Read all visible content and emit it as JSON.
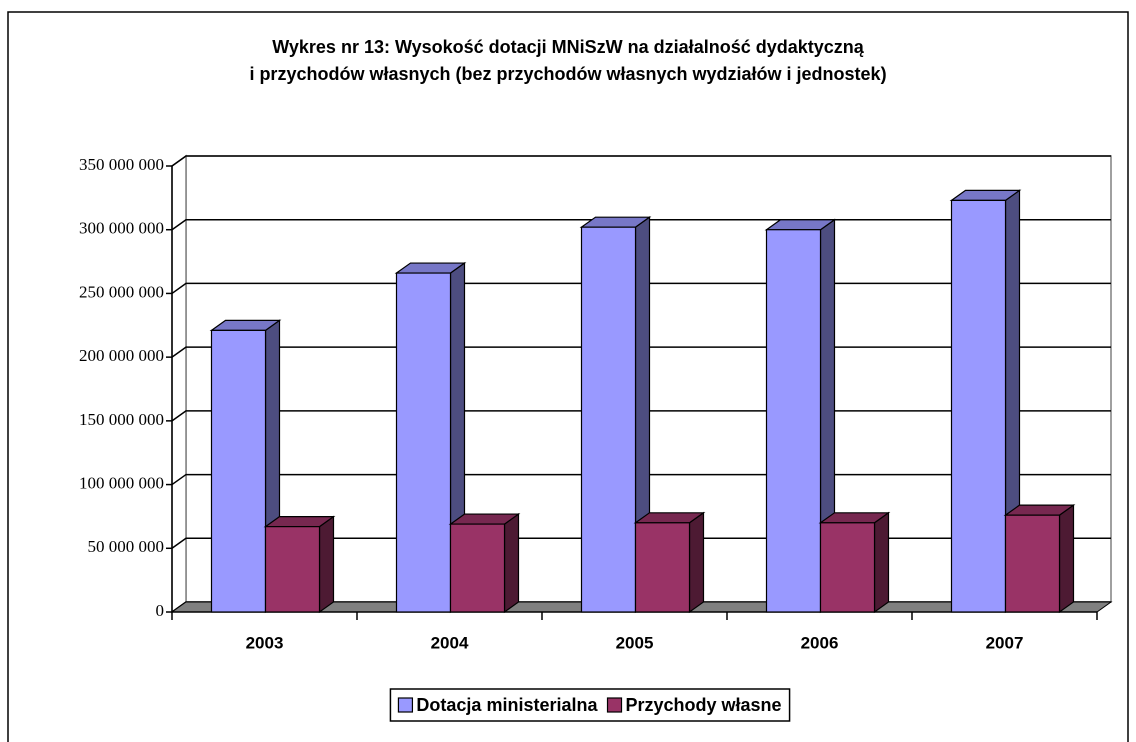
{
  "chart_data": {
    "type": "bar3d",
    "title": "Wykres nr 13: Wysokość dotacji MNiSzW na działalność dydaktyczną",
    "subtitle": "i przychodów własnych (bez przychodów własnych wydziałów i jednostek)",
    "categories": [
      "2003",
      "2004",
      "2005",
      "2006",
      "2007"
    ],
    "series": [
      {
        "name": "Dotacja ministerialna",
        "color": "#9999ff",
        "values": [
          221000000,
          266000000,
          302000000,
          300000000,
          323000000
        ]
      },
      {
        "name": "Przychody własne",
        "color": "#993366",
        "values": [
          67000000,
          69000000,
          70000000,
          70000000,
          76000000
        ]
      }
    ],
    "ylim": [
      0,
      350000000
    ],
    "yticks": [
      0,
      {
        "value": 50000000,
        "label": "50 000 000"
      },
      {
        "value": 100000000,
        "label": "100 000 000"
      },
      {
        "value": 150000000,
        "label": "150 000 000"
      },
      {
        "value": 200000000,
        "label": "200 000 000"
      },
      {
        "value": 250000000,
        "label": "250 000 000"
      },
      {
        "value": 300000000,
        "label": "300 000 000"
      },
      {
        "value": 350000000,
        "label": "350 000 000"
      }
    ],
    "grid": true,
    "legend": "bottom"
  }
}
